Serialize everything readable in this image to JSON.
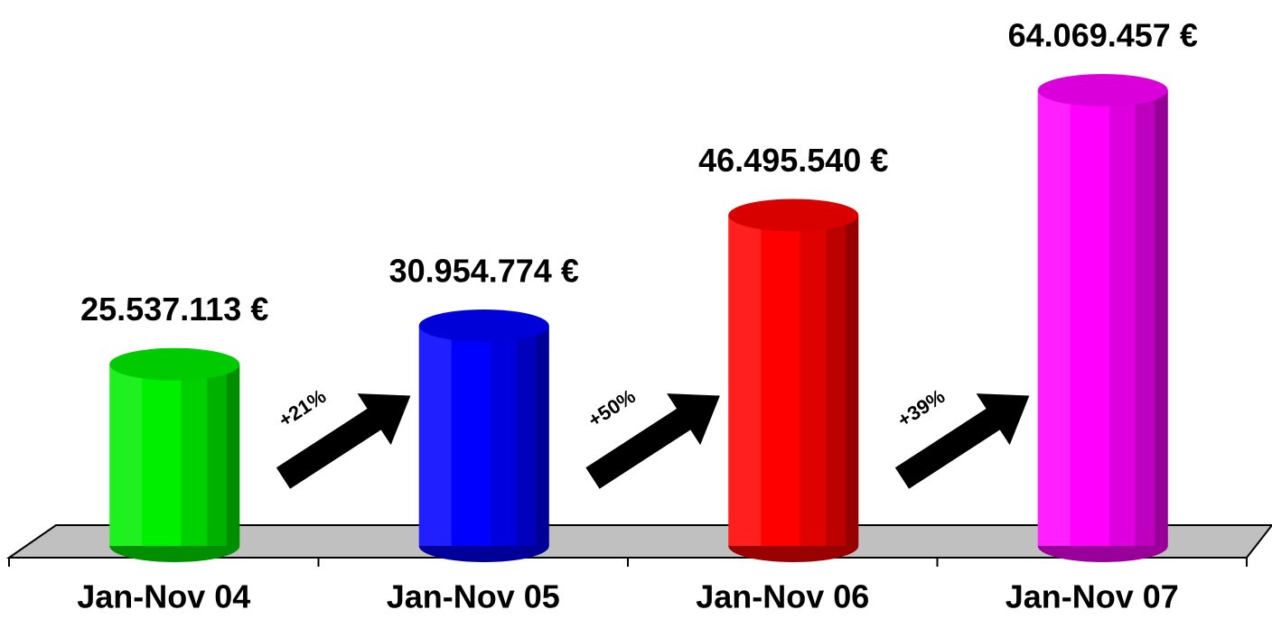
{
  "chart_data": {
    "type": "bar",
    "categories": [
      "Jan-Nov 04",
      "Jan-Nov 05",
      "Jan-Nov 06",
      "Jan-Nov 07"
    ],
    "values": [
      25537113,
      30954774,
      46495540,
      64069457
    ],
    "value_labels": [
      "25.537.113 €",
      "30.954.774 €",
      "46.495.540 €",
      "64.069.457 €"
    ],
    "colors": [
      "#00ee00",
      "#0000ff",
      "#ff0000",
      "#ff00ff"
    ],
    "annotations": [
      "+21%",
      "+50%",
      "+39%"
    ]
  }
}
